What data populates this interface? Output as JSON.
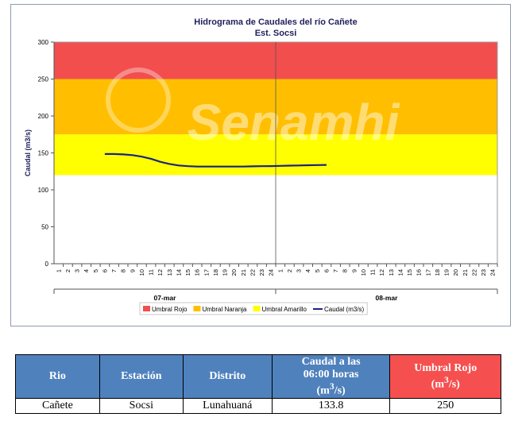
{
  "chart_data": {
    "type": "line",
    "title": "Hidrograma de Caudales  del río Cañete",
    "subtitle": "Est. Socsi",
    "ylabel": "Caudal  (m3/s)",
    "xlabel": "",
    "ylim": [
      0,
      300
    ],
    "yticks": [
      0,
      50,
      100,
      150,
      200,
      250,
      300
    ],
    "hour_ticks": [
      "1",
      "2",
      "3",
      "4",
      "5",
      "6",
      "7",
      "8",
      "9",
      "10",
      "11",
      "12",
      "13",
      "14",
      "15",
      "16",
      "17",
      "18",
      "19",
      "20",
      "21",
      "22",
      "23",
      "24"
    ],
    "days": [
      "07-mar",
      "08-mar"
    ],
    "watermark": "Senamhi",
    "bands": [
      {
        "name": "Umbral Rojo",
        "from": 250,
        "to": 300,
        "color": "#f24e4e"
      },
      {
        "name": "Umbral Naranja",
        "from": 175,
        "to": 250,
        "color": "#ffbf00"
      },
      {
        "name": "Umbral Amarillo",
        "from": 120,
        "to": 175,
        "color": "#ffff00"
      }
    ],
    "series": [
      {
        "name": "Caudal (m3/s)",
        "color": "#1a237e",
        "x": [
          6,
          7,
          8,
          9,
          10,
          11,
          12,
          13,
          14,
          15,
          16,
          17,
          18,
          19,
          20,
          21,
          22,
          23,
          24,
          25,
          26,
          27,
          28,
          29,
          30
        ],
        "values": [
          148.5,
          148.5,
          148,
          147,
          145,
          142,
          138,
          135,
          133,
          132,
          131.5,
          131.5,
          131.5,
          131.5,
          131.5,
          131.5,
          131.8,
          132,
          132.2,
          132.5,
          132.8,
          133,
          133.3,
          133.5,
          133.8
        ]
      }
    ],
    "legend": [
      "Umbral Rojo",
      "Umbral Naranja",
      "Umbral Amarillo",
      "Caudal (m3/s)"
    ]
  },
  "table": {
    "headers": [
      "Rio",
      "Estación",
      "Distrito",
      "Caudal a las 06:00 horas (m³/s)",
      "Umbral Rojo (m³/s)"
    ],
    "row": [
      "Cañete",
      "Socsi",
      "Lunahuaná",
      "133.8",
      "250"
    ]
  }
}
